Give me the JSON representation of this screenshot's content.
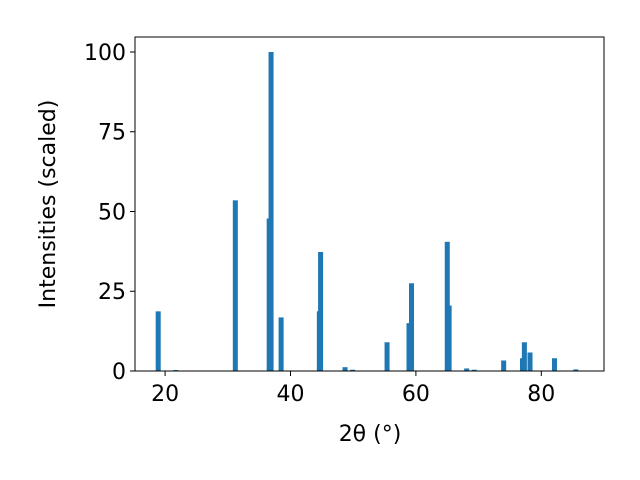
{
  "chart_data": {
    "type": "bar",
    "color": "#1f77b4",
    "xlabel": "2θ (°)",
    "ylabel": "Intensities (scaled)",
    "x": [
      18.9,
      21.7,
      31.2,
      36.6,
      36.9,
      38.5,
      44.6,
      44.8,
      48.7,
      49.9,
      55.4,
      58.9,
      59.3,
      65.0,
      65.3,
      68.1,
      69.3,
      74.0,
      77.0,
      77.3,
      78.2,
      82.1,
      85.5
    ],
    "values": [
      18.7,
      0.3,
      53.5,
      47.8,
      100,
      16.8,
      18.7,
      37.3,
      1.2,
      0.4,
      9,
      15,
      27.5,
      40.5,
      20.5,
      0.8,
      0.4,
      3.3,
      4,
      9,
      5.8,
      4,
      0.5
    ],
    "xlim": [
      15.2,
      90
    ],
    "ylim": [
      0,
      104.7
    ],
    "xticks": [
      20,
      40,
      60,
      80
    ],
    "yticks": [
      0,
      25,
      50,
      75,
      100
    ]
  }
}
